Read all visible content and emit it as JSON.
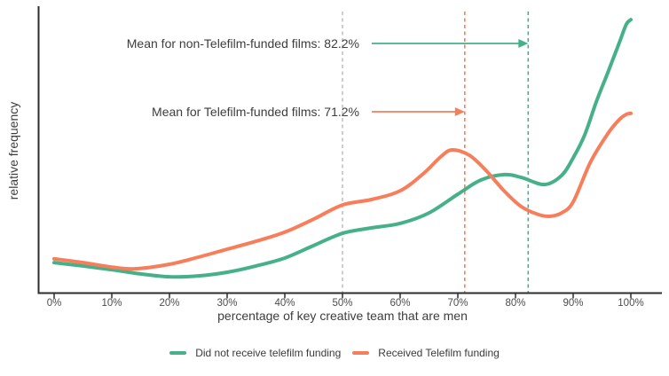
{
  "chart_data": {
    "type": "line",
    "variant": "density",
    "title": "",
    "xlabel": "percentage of key creative team that are men",
    "ylabel": "relative frequency",
    "x_ticks": [
      "0%",
      "10%",
      "20%",
      "30%",
      "40%",
      "50%",
      "60%",
      "70%",
      "80%",
      "90%",
      "100%"
    ],
    "xlim": [
      0,
      100
    ],
    "ylim": [
      0,
      1
    ],
    "grid": false,
    "legend_position": "bottom",
    "series": [
      {
        "name": "Did not receive telefilm funding",
        "color": "#46b189",
        "mean_pct": 82.2,
        "x": [
          0,
          5,
          10,
          15,
          20,
          25,
          30,
          35,
          40,
          45,
          50,
          55,
          60,
          65,
          70,
          74,
          78,
          81,
          85,
          88,
          90,
          92,
          94,
          96,
          98,
          99.2,
          100
        ],
        "y": [
          0.106,
          0.094,
          0.081,
          0.066,
          0.056,
          0.059,
          0.072,
          0.094,
          0.122,
          0.166,
          0.209,
          0.228,
          0.244,
          0.281,
          0.347,
          0.397,
          0.416,
          0.406,
          0.381,
          0.413,
          0.475,
          0.556,
          0.672,
          0.775,
          0.881,
          0.945,
          0.962
        ]
      },
      {
        "name": "Received Telefilm funding",
        "color": "#f77e5b",
        "mean_pct": 71.2,
        "x": [
          0,
          5,
          10,
          14,
          20,
          25,
          30,
          35,
          40,
          45,
          50,
          55,
          60,
          64,
          67,
          69,
          72,
          75,
          78,
          81,
          84,
          86,
          88,
          90,
          93,
          96,
          98,
          99.2,
          100
        ],
        "y": [
          0.119,
          0.106,
          0.09,
          0.084,
          0.1,
          0.125,
          0.153,
          0.181,
          0.213,
          0.259,
          0.309,
          0.328,
          0.359,
          0.419,
          0.478,
          0.503,
          0.484,
          0.428,
          0.359,
          0.303,
          0.275,
          0.269,
          0.281,
          0.32,
          0.46,
          0.56,
          0.61,
          0.628,
          0.632
        ]
      }
    ],
    "reference_lines": [
      {
        "name": "fifty-percent-reference-line",
        "x": 50,
        "color": "#c2c2c2"
      },
      {
        "name": "telefilm-mean-line",
        "x": 71.2,
        "color": "#f77e5b"
      },
      {
        "name": "non-telefilm-mean-line",
        "x": 82.2,
        "color": "#46b189"
      }
    ],
    "annotations": [
      {
        "name": "non-telefilm-mean",
        "text": "Mean for non-Telefilm-funded films: 82.2%",
        "arrow_to_x": 82.2,
        "color": "#46b189"
      },
      {
        "name": "telefilm-mean",
        "text": "Mean for Telefilm-funded films: 71.2%",
        "arrow_to_x": 71.2,
        "color": "#f77e5b"
      }
    ],
    "axis_color": "#2e2e2e"
  }
}
